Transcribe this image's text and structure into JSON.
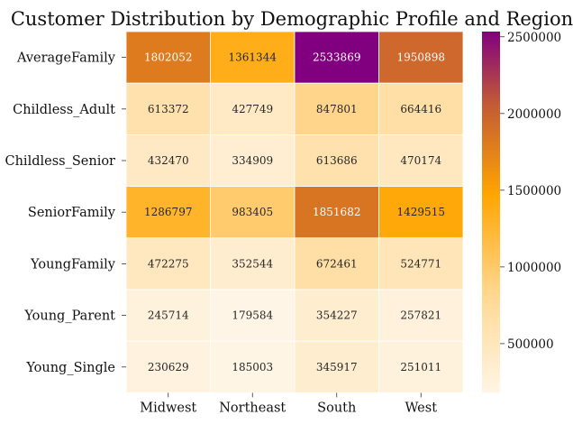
{
  "chart_data": {
    "type": "heatmap",
    "title": "Customer Distribution by Demographic Profile and Region",
    "xlabel": "",
    "ylabel": "",
    "columns": [
      "Midwest",
      "Northeast",
      "South",
      "West"
    ],
    "rows": [
      "AverageFamily",
      "Childless_Adult",
      "Childless_Senior",
      "SeniorFamily",
      "YoungFamily",
      "Young_Parent",
      "Young_Single"
    ],
    "values": [
      [
        1802052,
        1361344,
        2533869,
        1950898
      ],
      [
        613372,
        427749,
        847801,
        664416
      ],
      [
        432470,
        334909,
        613686,
        470174
      ],
      [
        1286797,
        983405,
        1851682,
        1429515
      ],
      [
        472275,
        352544,
        672461,
        524771
      ],
      [
        245714,
        179584,
        354227,
        257821
      ],
      [
        230629,
        185003,
        345917,
        251011
      ]
    ],
    "colorbar": {
      "ticks": [
        500000,
        1000000,
        1500000,
        2000000,
        2500000
      ],
      "tick_labels": [
        "500000",
        "1000000",
        "1500000",
        "2000000",
        "2500000"
      ],
      "colormap": [
        "#fff5e6",
        "#ffd892",
        "#ffa500",
        "#c25a36",
        "#800080"
      ]
    }
  }
}
